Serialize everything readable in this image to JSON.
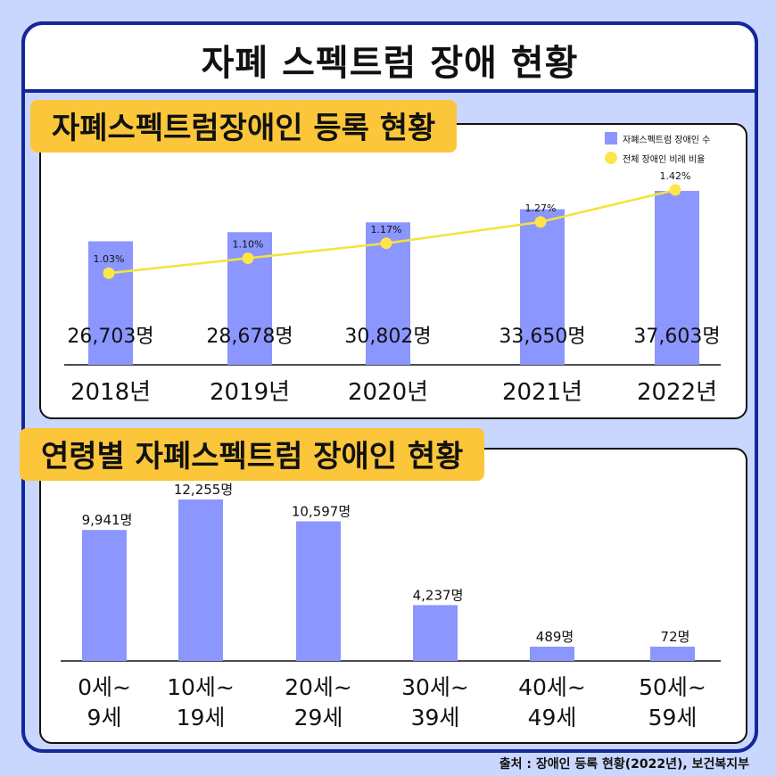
{
  "title": "자폐 스펙트럼 장애 현황",
  "section1": {
    "tag": "자폐스펙트럼장애인 등록 현황",
    "legend": [
      "자폐스펙트럼 장애인 수",
      "전체 장애인 비례 비율"
    ]
  },
  "section2": {
    "tag": "연령별 자폐스펙트럼 장애인 현황"
  },
  "source": "출처 : 장애인 등록 현황(2022년), 보건복지부",
  "colors": {
    "bar": "#8c96ff",
    "line": "#f2e43a",
    "dot": "#ffe44a",
    "tag": "#fcc63a",
    "border": "#13289a"
  },
  "chart_data": [
    {
      "type": "bar",
      "categories": [
        "2018년",
        "2019년",
        "2020년",
        "2021년",
        "2022년"
      ],
      "series": [
        {
          "name": "자폐스펙트럼 장애인 수",
          "values": [
            26703,
            28678,
            30802,
            33650,
            37603
          ],
          "labels": [
            "26,703명",
            "28,678명",
            "30,802명",
            "33,650명",
            "37,603명"
          ]
        },
        {
          "name": "전체 장애인 비례 비율",
          "type": "line",
          "values": [
            1.03,
            1.1,
            1.17,
            1.27,
            1.42
          ],
          "labels": [
            "1.03%",
            "1.10%",
            "1.17%",
            "1.27%",
            "1.42%"
          ]
        }
      ]
    },
    {
      "type": "bar",
      "categories": [
        "0세~\n9세",
        "10세~\n19세",
        "20세~\n29세",
        "30세~\n39세",
        "40세~\n49세",
        "50세~\n59세"
      ],
      "category_lines": [
        [
          "0세~",
          "9세"
        ],
        [
          "10세~",
          "19세"
        ],
        [
          "20세~",
          "29세"
        ],
        [
          "30세~",
          "39세"
        ],
        [
          "40세~",
          "49세"
        ],
        [
          "50세~",
          "59세"
        ]
      ],
      "values": [
        9941,
        12255,
        10597,
        4237,
        489,
        72
      ],
      "labels": [
        "9,941명",
        "12,255명",
        "10,597명",
        "4,237명",
        "489명",
        "72명"
      ]
    }
  ]
}
